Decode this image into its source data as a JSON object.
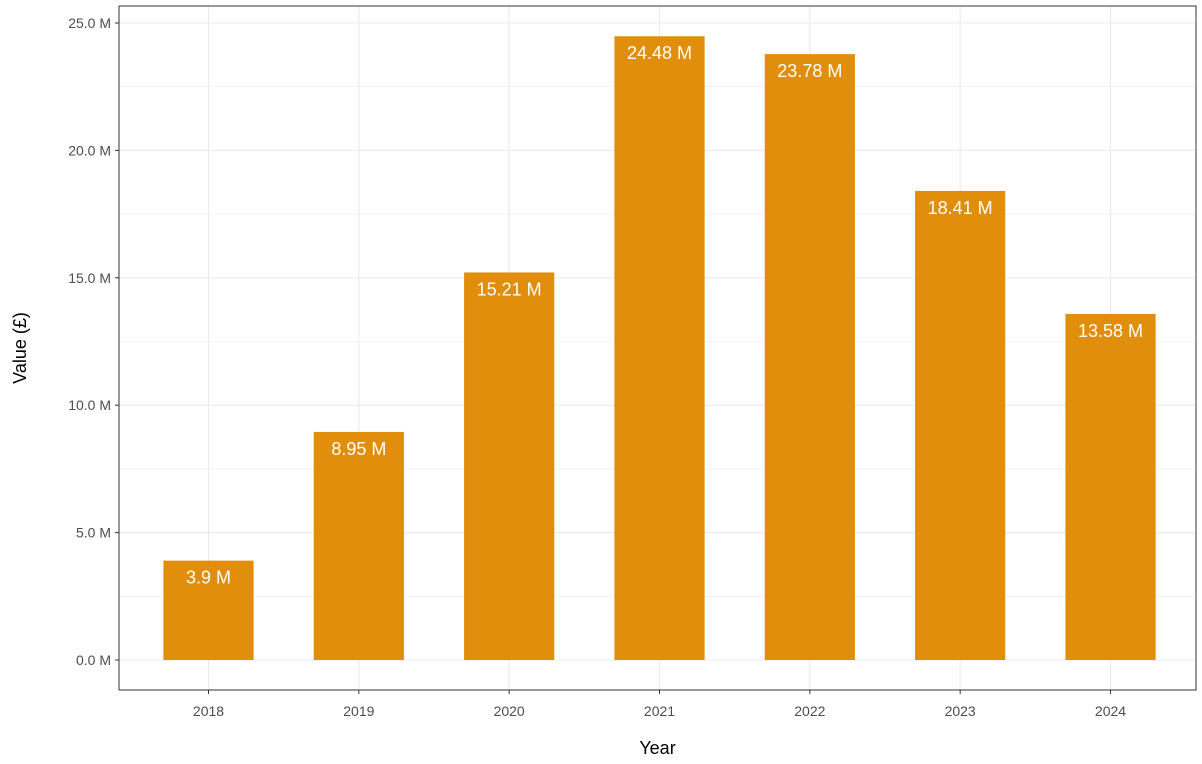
{
  "chart_data": {
    "type": "bar",
    "categories": [
      "2018",
      "2019",
      "2020",
      "2021",
      "2022",
      "2023",
      "2024"
    ],
    "values": [
      3.9,
      8.95,
      15.21,
      24.48,
      23.78,
      18.41,
      13.58
    ],
    "value_labels": [
      "3.9 M",
      "8.95 M",
      "15.21 M",
      "24.48 M",
      "23.78 M",
      "18.41 M",
      "13.58 M"
    ],
    "title": "",
    "xlabel": "Year",
    "ylabel": "Value (£)",
    "ylim": [
      0,
      25
    ],
    "y_ticks": [
      0,
      5,
      10,
      15,
      20,
      25
    ],
    "y_tick_labels": [
      "0.0 M",
      "5.0 M",
      "10.0 M",
      "15.0 M",
      "20.0 M",
      "25.0 M"
    ],
    "grid": true,
    "legend": "none",
    "colors": {
      "bar": "#E08E0B",
      "grid": "#EBEBEB",
      "panel_border": "#333333",
      "label": "#FFFFFF"
    }
  }
}
